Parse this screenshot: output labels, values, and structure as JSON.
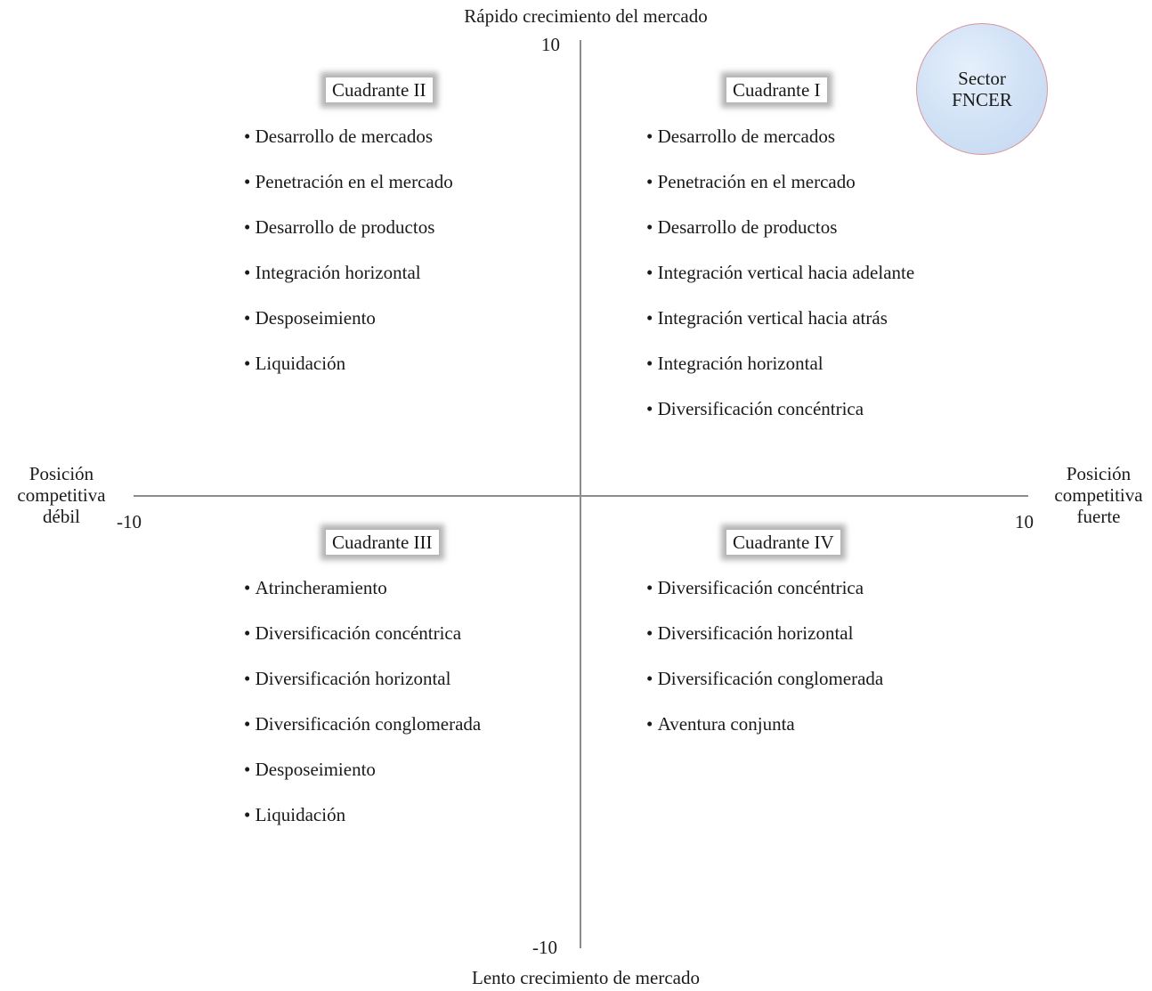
{
  "axes": {
    "top_title": "Rápido crecimiento del mercado",
    "bottom_title": "Lento crecimiento de mercado",
    "left_title": "Posición competitiva débil",
    "right_title": "Posición competitiva fuerte",
    "tick_top": "10",
    "tick_bottom": "-10",
    "tick_left": "-10",
    "tick_right": "10"
  },
  "sector_badge": {
    "line1": "Sector",
    "line2": "FNCER",
    "fill_color": "#d3e3f6",
    "border_color": "#d9959b"
  },
  "quadrants": [
    {
      "label": "Cuadrante I",
      "items": [
        "Desarrollo de mercados",
        "Penetración en el mercado",
        "Desarrollo de productos",
        "Integración vertical hacia adelante",
        "Integración vertical hacia atrás",
        "Integración horizontal",
        "Diversificación concéntrica"
      ]
    },
    {
      "label": "Cuadrante II",
      "items": [
        "Desarrollo de mercados",
        "Penetración en el mercado",
        "Desarrollo de productos",
        "Integración horizontal",
        "Desposeimiento",
        "Liquidación"
      ]
    },
    {
      "label": "Cuadrante III",
      "items": [
        "Atrincheramiento",
        "Diversificación concéntrica",
        "Diversificación horizontal",
        "Diversificación conglomerada",
        "Desposeimiento",
        "Liquidación"
      ]
    },
    {
      "label": "Cuadrante IV",
      "items": [
        "Diversificación concéntrica",
        "Diversificación horizontal",
        "Diversificación conglomerada",
        "Aventura conjunta"
      ]
    }
  ]
}
